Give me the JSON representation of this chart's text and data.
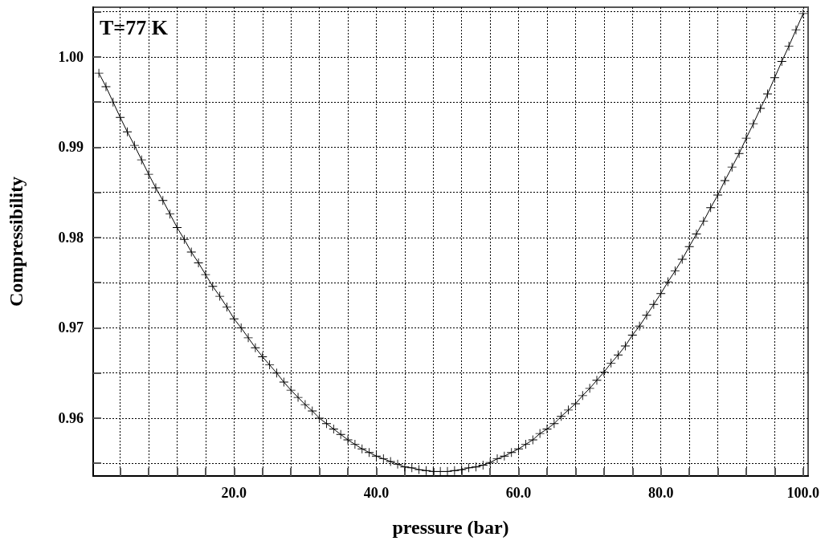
{
  "chart_data": {
    "type": "line",
    "xlabel": "pressure (bar)",
    "ylabel": "Compressibility",
    "annotations": [
      "T=77 K"
    ],
    "x": [
      1,
      2,
      3,
      4,
      5,
      6,
      7,
      8,
      9,
      10,
      11,
      12,
      13,
      14,
      15,
      16,
      17,
      18,
      19,
      20,
      21,
      22,
      23,
      24,
      25,
      26,
      27,
      28,
      29,
      30,
      31,
      32,
      33,
      34,
      35,
      36,
      37,
      38,
      39,
      40,
      41,
      42,
      43,
      44,
      45,
      46,
      47,
      48,
      49,
      50,
      51,
      52,
      53,
      54,
      55,
      56,
      57,
      58,
      59,
      60,
      61,
      62,
      63,
      64,
      65,
      66,
      67,
      68,
      69,
      70,
      71,
      72,
      73,
      74,
      75,
      76,
      77,
      78,
      79,
      80,
      81,
      82,
      83,
      84,
      85,
      86,
      87,
      88,
      89,
      90,
      91,
      92,
      93,
      94,
      95,
      96,
      97,
      98,
      99,
      100
    ],
    "series": [
      {
        "color": "#000000",
        "values": [
          0.9982,
          0.9967,
          0.995,
          0.9933,
          0.9917,
          0.9902,
          0.9886,
          0.987,
          0.9855,
          0.9841,
          0.9826,
          0.9811,
          0.9798,
          0.9784,
          0.9772,
          0.9759,
          0.9746,
          0.9735,
          0.9723,
          0.971,
          0.97,
          0.9689,
          0.9678,
          0.9668,
          0.9659,
          0.965,
          0.964,
          0.9631,
          0.9623,
          0.9615,
          0.9608,
          0.96,
          0.9594,
          0.9588,
          0.9582,
          0.9576,
          0.9571,
          0.9566,
          0.9562,
          0.9558,
          0.9555,
          0.9552,
          0.9549,
          0.9546,
          0.9545,
          0.9543,
          0.9542,
          0.9541,
          0.9541,
          0.9541,
          0.9542,
          0.9543,
          0.9545,
          0.9546,
          0.9548,
          0.9551,
          0.9555,
          0.9558,
          0.9562,
          0.9566,
          0.9571,
          0.9576,
          0.9583,
          0.9588,
          0.9594,
          0.9602,
          0.9609,
          0.9616,
          0.9625,
          0.9633,
          0.9642,
          0.9651,
          0.9661,
          0.967,
          0.968,
          0.9692,
          0.9702,
          0.9714,
          0.9726,
          0.9738,
          0.9751,
          0.9763,
          0.9776,
          0.979,
          0.9804,
          0.9818,
          0.9833,
          0.9847,
          0.9863,
          0.9878,
          0.9893,
          0.991,
          0.9926,
          0.9943,
          0.9959,
          0.9977,
          0.9995,
          1.0012,
          1.003,
          1.0048
        ]
      }
    ],
    "xlim": [
      0.2,
      100.7
    ],
    "xticks": [
      {
        "value": 4,
        "label": null
      },
      {
        "value": 8,
        "label": null
      },
      {
        "value": 12,
        "label": null
      },
      {
        "value": 16,
        "label": null
      },
      {
        "value": 20,
        "label": "20.0"
      },
      {
        "value": 24,
        "label": null
      },
      {
        "value": 28,
        "label": null
      },
      {
        "value": 32,
        "label": null
      },
      {
        "value": 36,
        "label": null
      },
      {
        "value": 40,
        "label": "40.0"
      },
      {
        "value": 44,
        "label": null
      },
      {
        "value": 48,
        "label": null
      },
      {
        "value": 52,
        "label": null
      },
      {
        "value": 56,
        "label": null
      },
      {
        "value": 60,
        "label": "60.0"
      },
      {
        "value": 64,
        "label": null
      },
      {
        "value": 68,
        "label": null
      },
      {
        "value": 72,
        "label": null
      },
      {
        "value": 76,
        "label": null
      },
      {
        "value": 80,
        "label": "80.0"
      },
      {
        "value": 84,
        "label": null
      },
      {
        "value": 88,
        "label": null
      },
      {
        "value": 92,
        "label": null
      },
      {
        "value": 96,
        "label": null
      },
      {
        "value": 100,
        "label": "100.0"
      }
    ],
    "ylim": [
      0.9536,
      1.0055
    ],
    "yticks": [
      {
        "value": 0.955,
        "label": null
      },
      0.96,
      {
        "value": 0.965,
        "label": null
      },
      0.97,
      {
        "value": 0.975,
        "label": null
      },
      0.98,
      {
        "value": 0.985,
        "label": null
      },
      0.99,
      {
        "value": 0.995,
        "label": null
      },
      {
        "value": 1,
        "label": "1.00"
      },
      {
        "value": 1.005,
        "label": null
      }
    ],
    "grid": true,
    "marker": "cross",
    "line_style": "solid"
  }
}
